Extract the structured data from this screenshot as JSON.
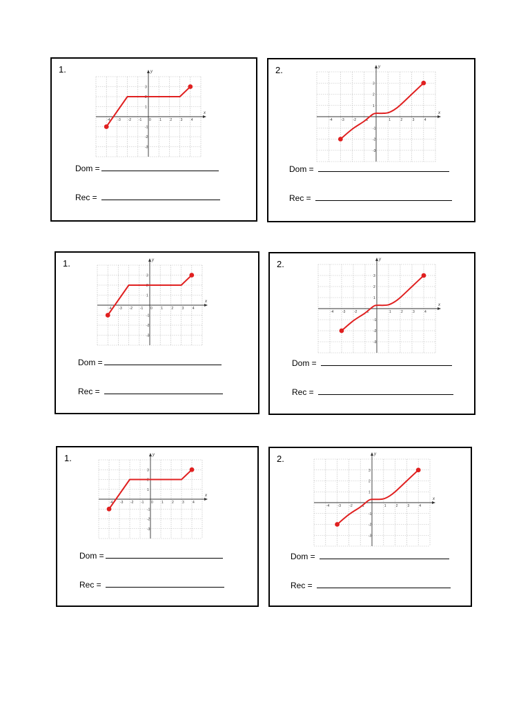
{
  "cards": [
    {
      "number": "1.",
      "dom_label": "Dom =",
      "rec_label": "Rec =",
      "chart_data": {
        "type": "line",
        "xlabel": "x",
        "ylabel": "y",
        "xlim": [
          -4,
          4
        ],
        "ylim": [
          -3,
          3
        ],
        "x_ticks": [
          -4,
          -3,
          -2,
          -1,
          0,
          1,
          2,
          3,
          4
        ],
        "y_ticks": [
          -3,
          -2,
          -1,
          1,
          2,
          3
        ],
        "series": [
          {
            "x": [
              -4,
              -2,
              3,
              4
            ],
            "y": [
              -1,
              2,
              2,
              3
            ],
            "endpoints": "closed",
            "curve": "linear"
          }
        ],
        "color": "#e02020"
      }
    },
    {
      "number": "2.",
      "dom_label": "Dom =",
      "rec_label": "Rec =",
      "chart_data": {
        "type": "line",
        "xlabel": "x",
        "ylabel": "y",
        "xlim": [
          -4,
          4
        ],
        "ylim": [
          -3,
          3
        ],
        "x_ticks": [
          -4,
          -3,
          -2,
          -1,
          1,
          2,
          3,
          4
        ],
        "y_ticks": [
          -3,
          -2,
          -1,
          1,
          2,
          3
        ],
        "series": [
          {
            "x": [
              -3,
              -2,
              -1,
              -0.3,
              0,
              0.5,
              1,
              1.5,
              2,
              3,
              4
            ],
            "y": [
              -2,
              -1.1,
              -0.4,
              0.2,
              0.3,
              0.3,
              0.35,
              0.6,
              1.0,
              2.0,
              3.0
            ],
            "endpoints": "closed",
            "curve": "smooth"
          }
        ],
        "color": "#e02020"
      }
    },
    {
      "number": "1.",
      "dom_label": "Dom =",
      "rec_label": "Rec =",
      "chart_data": {
        "type": "line",
        "xlabel": "x",
        "ylabel": "y",
        "xlim": [
          -4,
          4
        ],
        "ylim": [
          -3,
          3
        ],
        "x_ticks": [
          -4,
          -3,
          -2,
          -1,
          0,
          1,
          2,
          3,
          4
        ],
        "y_ticks": [
          -3,
          -2,
          -1,
          1,
          2,
          3
        ],
        "series": [
          {
            "x": [
              -4,
              -2,
              3,
              4
            ],
            "y": [
              -1,
              2,
              2,
              3
            ],
            "endpoints": "closed",
            "curve": "linear"
          }
        ],
        "color": "#e02020"
      }
    },
    {
      "number": "2.",
      "dom_label": "Dom =",
      "rec_label": "Rec =",
      "chart_data": {
        "type": "line",
        "xlabel": "x",
        "ylabel": "y",
        "xlim": [
          -4,
          4
        ],
        "ylim": [
          -3,
          3
        ],
        "x_ticks": [
          -4,
          -3,
          -2,
          -1,
          1,
          2,
          3,
          4
        ],
        "y_ticks": [
          -3,
          -2,
          -1,
          1,
          2,
          3
        ],
        "series": [
          {
            "x": [
              -3,
              -2,
              -1,
              -0.3,
              0,
              0.5,
              1,
              1.5,
              2,
              3,
              4
            ],
            "y": [
              -2,
              -1.1,
              -0.4,
              0.2,
              0.3,
              0.3,
              0.35,
              0.6,
              1.0,
              2.0,
              3.0
            ],
            "endpoints": "closed",
            "curve": "smooth"
          }
        ],
        "color": "#e02020"
      }
    },
    {
      "number": "1.",
      "dom_label": "Dom =",
      "rec_label": "Rec =",
      "chart_data": {
        "type": "line",
        "xlabel": "x",
        "ylabel": "y",
        "xlim": [
          -4,
          4
        ],
        "ylim": [
          -3,
          3
        ],
        "x_ticks": [
          -4,
          -3,
          -2,
          -1,
          0,
          1,
          2,
          3,
          4
        ],
        "y_ticks": [
          -3,
          -2,
          -1,
          1,
          2,
          3
        ],
        "series": [
          {
            "x": [
              -4,
              -2,
              3,
              4
            ],
            "y": [
              -1,
              2,
              2,
              3
            ],
            "endpoints": "closed",
            "curve": "linear"
          }
        ],
        "color": "#e02020"
      }
    },
    {
      "number": "2.",
      "dom_label": "Dom =",
      "rec_label": "Rec =",
      "chart_data": {
        "type": "line",
        "xlabel": "x",
        "ylabel": "y",
        "xlim": [
          -4,
          4
        ],
        "ylim": [
          -3,
          3
        ],
        "x_ticks": [
          -4,
          -3,
          -2,
          -1,
          1,
          2,
          3,
          4
        ],
        "y_ticks": [
          -3,
          -2,
          -1,
          1,
          2,
          3
        ],
        "series": [
          {
            "x": [
              -3,
              -2,
              -1,
              -0.3,
              0,
              0.5,
              1,
              1.5,
              2,
              3,
              4
            ],
            "y": [
              -2,
              -1.1,
              -0.4,
              0.2,
              0.3,
              0.3,
              0.35,
              0.6,
              1.0,
              2.0,
              3.0
            ],
            "endpoints": "closed",
            "curve": "smooth"
          }
        ],
        "color": "#e02020"
      }
    }
  ]
}
